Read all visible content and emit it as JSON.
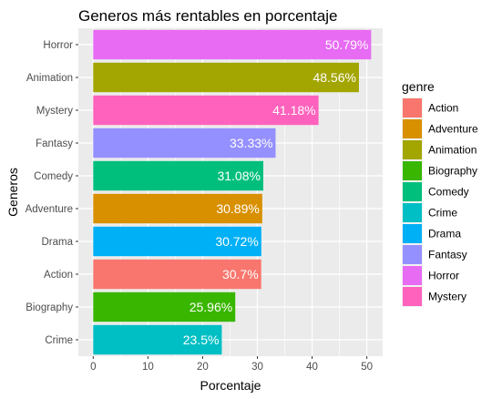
{
  "chart_data": {
    "type": "bar",
    "orientation": "horizontal",
    "title": "Generos más rentables en porcentaje",
    "xlabel": "Porcentaje",
    "ylabel": "Generos",
    "xlim": [
      0,
      53.3
    ],
    "xticks": [
      0,
      10,
      20,
      30,
      40,
      50
    ],
    "grid": true,
    "legend_position": "right",
    "categories": [
      "Horror",
      "Animation",
      "Mystery",
      "Fantasy",
      "Comedy",
      "Adventure",
      "Drama",
      "Action",
      "Biography",
      "Crime"
    ],
    "values": [
      50.79,
      48.56,
      41.18,
      33.33,
      31.08,
      30.89,
      30.72,
      30.7,
      25.96,
      23.5
    ],
    "data_labels": [
      "50.79%",
      "48.56%",
      "41.18%",
      "33.33%",
      "31.08%",
      "30.89%",
      "30.72%",
      "30.7%",
      "25.96%",
      "23.5%"
    ],
    "legend": {
      "title": "genre",
      "entries": [
        "Action",
        "Adventure",
        "Animation",
        "Biography",
        "Comedy",
        "Crime",
        "Drama",
        "Fantasy",
        "Horror",
        "Mystery"
      ],
      "colors": [
        "#F8766D",
        "#D89000",
        "#A3A500",
        "#39B600",
        "#00BF7D",
        "#00BFC4",
        "#00B0F6",
        "#9590FF",
        "#E76BF3",
        "#FF62BC"
      ]
    }
  }
}
